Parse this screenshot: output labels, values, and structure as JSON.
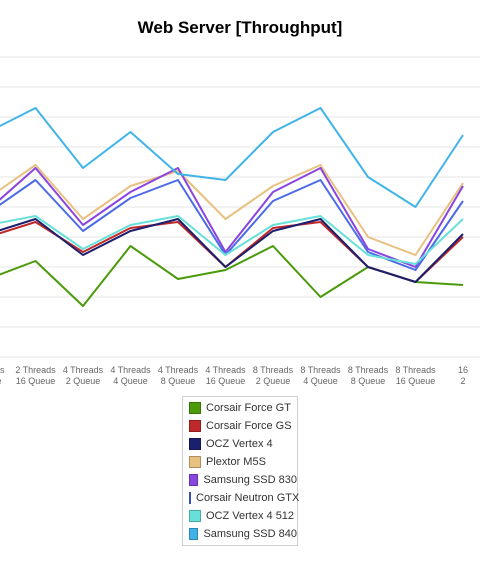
{
  "chart_data": {
    "type": "line",
    "title": "Web Server [Throughput]",
    "xlabel": "",
    "ylabel": "",
    "grid": true,
    "legend_position": "bottom",
    "categories": [
      [
        "Threads",
        "Queue"
      ],
      [
        "2 Threads",
        "16 Queue"
      ],
      [
        "4 Threads",
        "2 Queue"
      ],
      [
        "4 Threads",
        "4 Queue"
      ],
      [
        "4 Threads",
        "8 Queue"
      ],
      [
        "4 Threads",
        "16 Queue"
      ],
      [
        "8 Threads",
        "2 Queue"
      ],
      [
        "8 Threads",
        "4 Queue"
      ],
      [
        "8 Threads",
        "8 Queue"
      ],
      [
        "8 Threads",
        "16 Queue"
      ],
      [
        "16",
        "2"
      ]
    ],
    "ylim": [
      0,
      10
    ],
    "series": [
      {
        "name": "Corsair Force GT",
        "color": "#4a9a0a",
        "values": [
          2.6,
          3.2,
          1.7,
          3.7,
          2.6,
          2.9,
          3.7,
          2.0,
          3.0,
          2.5,
          2.4
        ]
      },
      {
        "name": "Corsair Force GS",
        "color": "#c0282a",
        "values": [
          4.0,
          4.5,
          3.5,
          4.3,
          4.5,
          3.0,
          4.3,
          4.5,
          3.0,
          2.5,
          4.0
        ]
      },
      {
        "name": "OCZ Vertex 4",
        "color": "#1a1f6e",
        "values": [
          4.1,
          4.6,
          3.4,
          4.2,
          4.6,
          3.0,
          4.2,
          4.6,
          3.0,
          2.5,
          4.1
        ]
      },
      {
        "name": "Plextor M5S",
        "color": "#e8c080",
        "values": [
          5.3,
          6.4,
          4.6,
          5.7,
          6.2,
          4.6,
          5.7,
          6.4,
          4.0,
          3.4,
          5.8
        ]
      },
      {
        "name": "Samsung SSD 830",
        "color": "#8a44e0",
        "values": [
          4.9,
          6.3,
          4.4,
          5.5,
          6.3,
          3.5,
          5.5,
          6.3,
          3.6,
          3.0,
          5.7
        ]
      },
      {
        "name": "Corsair Neutron GTX",
        "color": "#4a6ae8",
        "values": [
          4.8,
          5.9,
          4.2,
          5.3,
          5.9,
          3.4,
          5.2,
          5.9,
          3.5,
          2.9,
          5.2
        ]
      },
      {
        "name": "OCZ Vertex 4 512",
        "color": "#66e0d8",
        "values": [
          4.4,
          4.7,
          3.6,
          4.4,
          4.7,
          3.4,
          4.4,
          4.7,
          3.4,
          3.1,
          4.6
        ]
      },
      {
        "name": "Samsung SSD 840",
        "color": "#40b4e8",
        "values": [
          7.5,
          8.3,
          6.3,
          7.5,
          6.1,
          5.9,
          7.5,
          8.3,
          6.0,
          5.0,
          7.4
        ]
      }
    ]
  }
}
